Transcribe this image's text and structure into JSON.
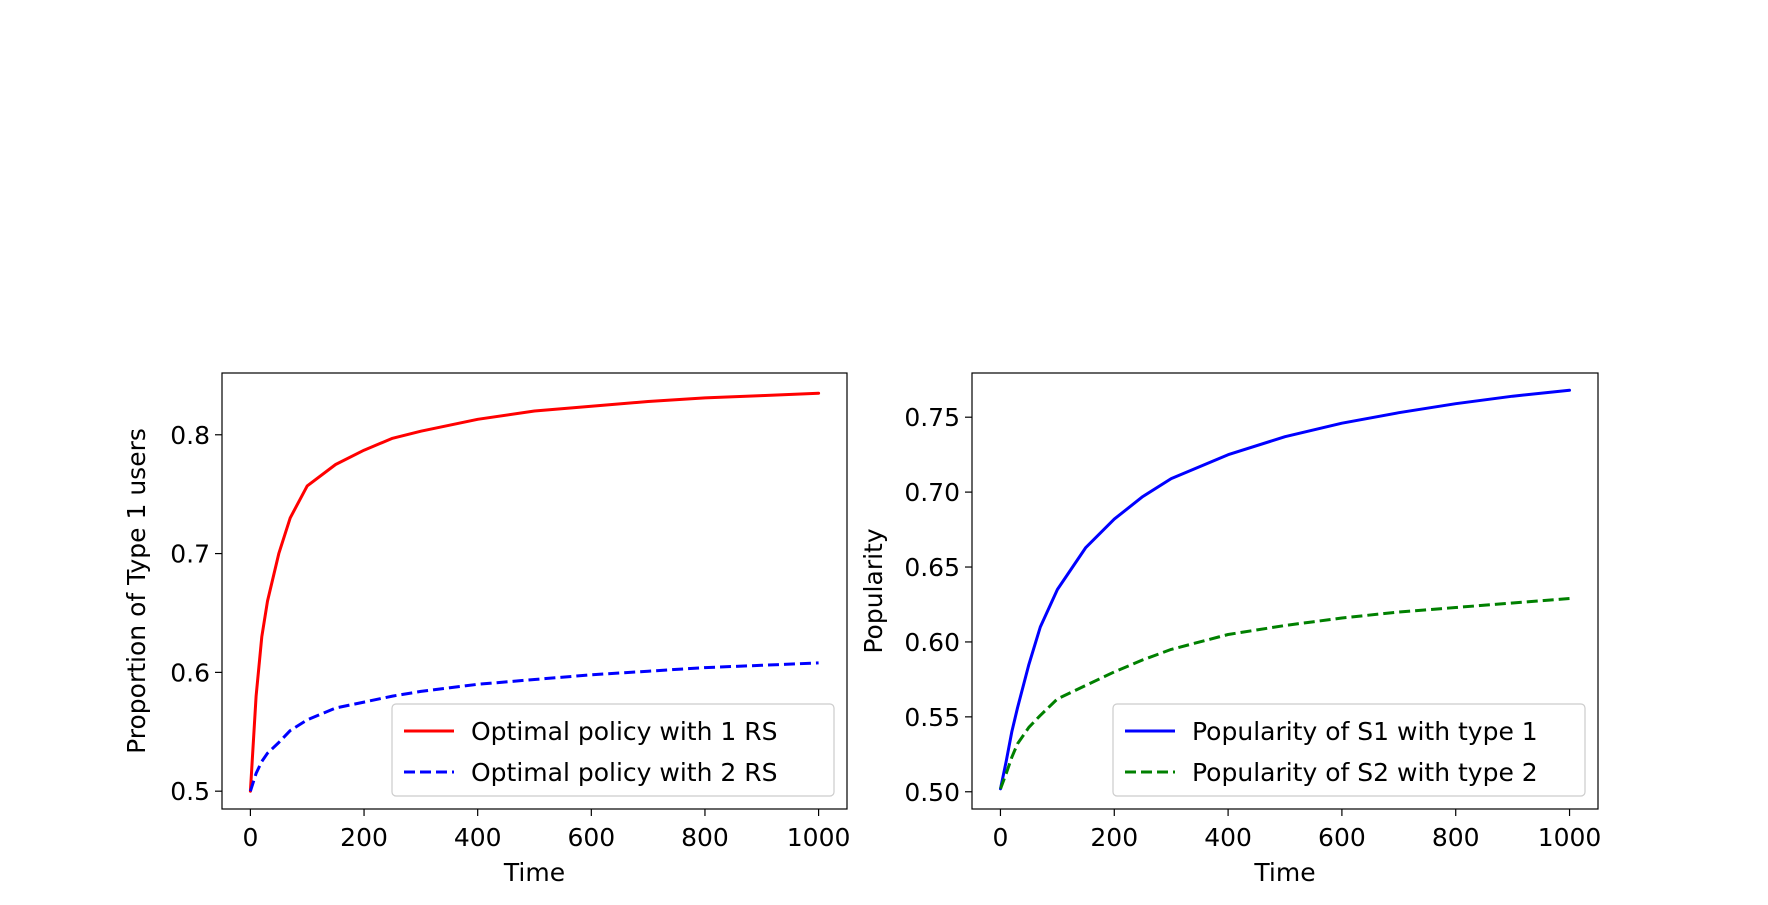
{
  "chart_data": [
    {
      "type": "line",
      "xlabel": "Time",
      "ylabel": "Proportion of Type 1 users",
      "xlim": [
        -50,
        1050
      ],
      "ylim": [
        0.485,
        0.852
      ],
      "xticks": [
        0,
        200,
        400,
        600,
        800,
        1000
      ],
      "xtick_labels": [
        "0",
        "200",
        "400",
        "600",
        "800",
        "1000"
      ],
      "yticks": [
        0.5,
        0.6,
        0.7,
        0.8
      ],
      "ytick_labels": [
        "0.5",
        "0.6",
        "0.7",
        "0.8"
      ],
      "grid": false,
      "legend_position": "lower right",
      "x": [
        0,
        10,
        20,
        30,
        50,
        70,
        100,
        150,
        200,
        250,
        300,
        400,
        500,
        600,
        700,
        800,
        900,
        1000
      ],
      "series": [
        {
          "name": "Optimal policy with 1 RS",
          "color": "#ff0000",
          "style": "solid",
          "values": [
            0.5,
            0.58,
            0.63,
            0.66,
            0.7,
            0.73,
            0.757,
            0.775,
            0.787,
            0.797,
            0.803,
            0.813,
            0.82,
            0.824,
            0.828,
            0.831,
            0.833,
            0.835
          ]
        },
        {
          "name": "Optimal policy with 2 RS",
          "color": "#0000ff",
          "style": "dashed",
          "values": [
            0.5,
            0.515,
            0.525,
            0.532,
            0.541,
            0.551,
            0.56,
            0.57,
            0.575,
            0.58,
            0.584,
            0.59,
            0.594,
            0.598,
            0.601,
            0.604,
            0.606,
            0.608
          ]
        }
      ]
    },
    {
      "type": "line",
      "xlabel": "Time",
      "ylabel": "Popularity",
      "xlim": [
        -50,
        1050
      ],
      "ylim": [
        0.4885,
        0.7795
      ],
      "xticks": [
        0,
        200,
        400,
        600,
        800,
        1000
      ],
      "xtick_labels": [
        "0",
        "200",
        "400",
        "600",
        "800",
        "1000"
      ],
      "yticks": [
        0.5,
        0.55,
        0.6,
        0.65,
        0.7,
        0.75
      ],
      "ytick_labels": [
        "0.50",
        "0.55",
        "0.60",
        "0.65",
        "0.70",
        "0.75"
      ],
      "grid": false,
      "legend_position": "lower right",
      "x": [
        0,
        10,
        20,
        30,
        50,
        70,
        100,
        150,
        200,
        250,
        300,
        400,
        500,
        600,
        700,
        800,
        900,
        1000
      ],
      "series": [
        {
          "name": "Popularity of S1 with type 1",
          "color": "#0000ff",
          "style": "solid",
          "values": [
            0.502,
            0.52,
            0.54,
            0.556,
            0.585,
            0.61,
            0.635,
            0.663,
            0.682,
            0.697,
            0.709,
            0.725,
            0.737,
            0.746,
            0.753,
            0.759,
            0.764,
            0.768
          ]
        },
        {
          "name": "Popularity of S2 with type 2",
          "color": "#008000",
          "style": "dashed",
          "values": [
            0.502,
            0.512,
            0.523,
            0.532,
            0.543,
            0.551,
            0.562,
            0.571,
            0.58,
            0.588,
            0.595,
            0.605,
            0.611,
            0.616,
            0.62,
            0.623,
            0.626,
            0.629
          ]
        }
      ]
    }
  ]
}
